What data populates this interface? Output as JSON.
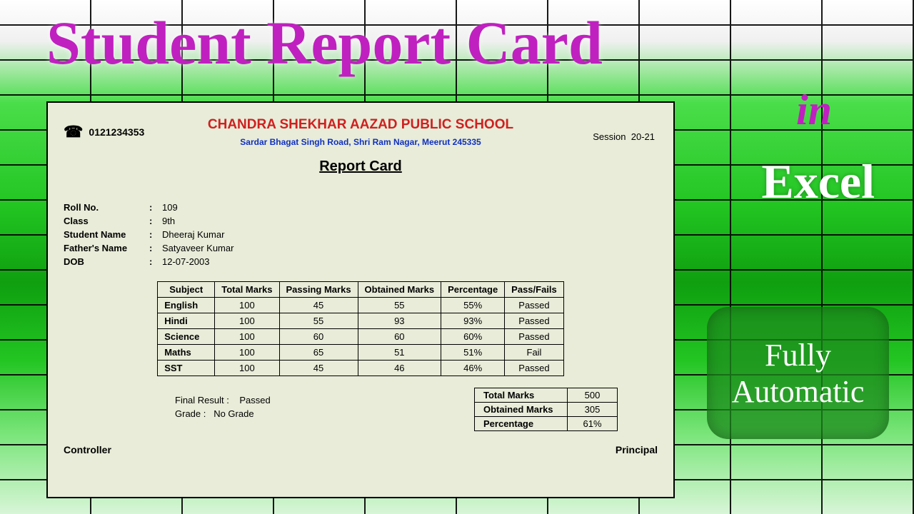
{
  "title": {
    "main": "Student Report Card",
    "in": "in",
    "excel": "Excel"
  },
  "badge": {
    "line1": "Fully",
    "line2": "Automatic"
  },
  "card": {
    "phone": "0121234353",
    "school": "CHANDRA SHEKHAR AAZAD PUBLIC SCHOOL",
    "address": "Sardar Bhagat Singh Road, Shri Ram Nagar, Meerut 245335",
    "session_label": "Session",
    "session_value": "20-21",
    "heading": "Report Card",
    "info": {
      "roll_label": "Roll No.",
      "roll": "109",
      "class_label": "Class",
      "class": "9th",
      "name_label": "Student Name",
      "name": "Dheeraj Kumar",
      "father_label": "Father's Name",
      "father": "Satyaveer Kumar",
      "dob_label": "DOB",
      "dob": "12-07-2003"
    },
    "cols": {
      "c1": "Subject",
      "c2": "Total Marks",
      "c3": "Passing Marks",
      "c4": "Obtained Marks",
      "c5": "Percentage",
      "c6": "Pass/Fails"
    },
    "rows": [
      {
        "s": "English",
        "t": "100",
        "p": "45",
        "o": "55",
        "pc": "55%",
        "r": "Passed"
      },
      {
        "s": "Hindi",
        "t": "100",
        "p": "55",
        "o": "93",
        "pc": "93%",
        "r": "Passed"
      },
      {
        "s": "Science",
        "t": "100",
        "p": "60",
        "o": "60",
        "pc": "60%",
        "r": "Passed"
      },
      {
        "s": "Maths",
        "t": "100",
        "p": "65",
        "o": "51",
        "pc": "51%",
        "r": "Fail"
      },
      {
        "s": "SST",
        "t": "100",
        "p": "45",
        "o": "46",
        "pc": "46%",
        "r": "Passed"
      }
    ],
    "final": {
      "result_label": "Final Result :",
      "result": "Passed",
      "grade_label": "Grade        :",
      "grade": "No Grade"
    },
    "summary": {
      "total_label": "Total Marks",
      "total": "500",
      "obtained_label": "Obtained Marks",
      "obtained": "305",
      "pc_label": "Percentage",
      "pc": "61%"
    },
    "sig": {
      "left": "Controller",
      "right": "Principal"
    }
  },
  "colors": {
    "title": "#c020c0",
    "school": "#d02020",
    "address": "#1030c0",
    "card_bg": "#e8ecd8"
  }
}
